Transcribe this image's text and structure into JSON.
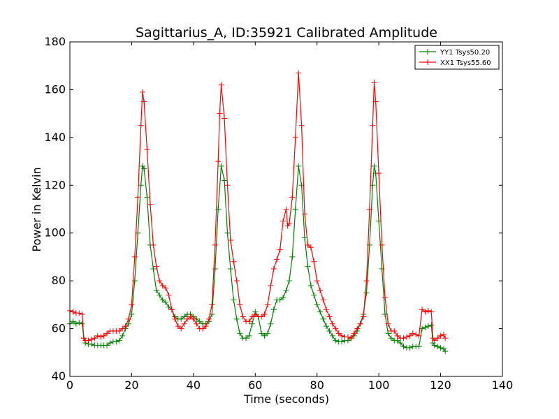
{
  "chart_data": {
    "type": "line",
    "title": "Sagittarius_A, ID:35921 Calibrated Amplitude",
    "xlabel": "Time (seconds)",
    "ylabel": "Power in Kelvin",
    "xlim": [
      0,
      140
    ],
    "ylim": [
      40,
      180
    ],
    "xticks": [
      0,
      20,
      40,
      60,
      80,
      100,
      120,
      140
    ],
    "yticks": [
      40,
      60,
      80,
      100,
      120,
      140,
      160,
      180
    ],
    "grid": false,
    "legend_position": "top-right",
    "marker": "+",
    "series": [
      {
        "name": "YY1 Tsys50.20",
        "color": "#008000",
        "points": [
          [
            0,
            62
          ],
          [
            1,
            63
          ],
          [
            2,
            62
          ],
          [
            3,
            62.5
          ],
          [
            4,
            62
          ],
          [
            4.5,
            56
          ],
          [
            5,
            54
          ],
          [
            6,
            53.5
          ],
          [
            7,
            53.5
          ],
          [
            8,
            53
          ],
          [
            9,
            53
          ],
          [
            10,
            53
          ],
          [
            11,
            53
          ],
          [
            12,
            53
          ],
          [
            13,
            54
          ],
          [
            14,
            54.5
          ],
          [
            15,
            54.5
          ],
          [
            16,
            55
          ],
          [
            17,
            57
          ],
          [
            18,
            60
          ],
          [
            19,
            62
          ],
          [
            20,
            66
          ],
          [
            21,
            80
          ],
          [
            22,
            100
          ],
          [
            23,
            120
          ],
          [
            23.5,
            128
          ],
          [
            24,
            127
          ],
          [
            25,
            115
          ],
          [
            26,
            95
          ],
          [
            27,
            85
          ],
          [
            28,
            76
          ],
          [
            29,
            74
          ],
          [
            30,
            72
          ],
          [
            31,
            71
          ],
          [
            32,
            69
          ],
          [
            33,
            68
          ],
          [
            34,
            65
          ],
          [
            35,
            64
          ],
          [
            36,
            64
          ],
          [
            37,
            65
          ],
          [
            38,
            66
          ],
          [
            39,
            66
          ],
          [
            40,
            65
          ],
          [
            41,
            64
          ],
          [
            42,
            63
          ],
          [
            43,
            62
          ],
          [
            44,
            62
          ],
          [
            45,
            63
          ],
          [
            46,
            66
          ],
          [
            47,
            85
          ],
          [
            48,
            110
          ],
          [
            49,
            128
          ],
          [
            50,
            122
          ],
          [
            51,
            100
          ],
          [
            52,
            85
          ],
          [
            53,
            72
          ],
          [
            54,
            64
          ],
          [
            55,
            58
          ],
          [
            56,
            56
          ],
          [
            57,
            56
          ],
          [
            58,
            57
          ],
          [
            59,
            62
          ],
          [
            60,
            67
          ],
          [
            61,
            65
          ],
          [
            62,
            58
          ],
          [
            63,
            57
          ],
          [
            64,
            58
          ],
          [
            65,
            62
          ],
          [
            66,
            68
          ],
          [
            67,
            72
          ],
          [
            68,
            72
          ],
          [
            69,
            73
          ],
          [
            70,
            76
          ],
          [
            71,
            80
          ],
          [
            72,
            90
          ],
          [
            73,
            110
          ],
          [
            74,
            128
          ],
          [
            75,
            120
          ],
          [
            76,
            98
          ],
          [
            77,
            86
          ],
          [
            78,
            78
          ],
          [
            79,
            74
          ],
          [
            80,
            70
          ],
          [
            81,
            67
          ],
          [
            82,
            64
          ],
          [
            83,
            61
          ],
          [
            84,
            59
          ],
          [
            85,
            57
          ],
          [
            86,
            55
          ],
          [
            87,
            54.5
          ],
          [
            88,
            54.5
          ],
          [
            89,
            55
          ],
          [
            90,
            55
          ],
          [
            91,
            56
          ],
          [
            92,
            57
          ],
          [
            93,
            59
          ],
          [
            94,
            62
          ],
          [
            95,
            66
          ],
          [
            96,
            75
          ],
          [
            97,
            95
          ],
          [
            98,
            120
          ],
          [
            98.5,
            128
          ],
          [
            99,
            125
          ],
          [
            100,
            105
          ],
          [
            101,
            85
          ],
          [
            102,
            66
          ],
          [
            103,
            58
          ],
          [
            104,
            56
          ],
          [
            105,
            55
          ],
          [
            106,
            55
          ],
          [
            107,
            54
          ],
          [
            108,
            52.5
          ],
          [
            109,
            52
          ],
          [
            110,
            52
          ],
          [
            111,
            52.5
          ],
          [
            112,
            52.5
          ],
          [
            113,
            52.5
          ],
          [
            114,
            60
          ],
          [
            115,
            60.5
          ],
          [
            116,
            61
          ],
          [
            117,
            61.5
          ],
          [
            117.5,
            54
          ],
          [
            118,
            53
          ],
          [
            119,
            52.5
          ],
          [
            120,
            52
          ],
          [
            121,
            51.5
          ],
          [
            121.5,
            50.5
          ]
        ]
      },
      {
        "name": "XX1 Tsys55.60",
        "color": "#ff0000",
        "points": [
          [
            0,
            67.5
          ],
          [
            1,
            67
          ],
          [
            2,
            66.5
          ],
          [
            3,
            66.5
          ],
          [
            4,
            66
          ],
          [
            4.5,
            56
          ],
          [
            5,
            55
          ],
          [
            6,
            55
          ],
          [
            7,
            55.5
          ],
          [
            8,
            56
          ],
          [
            9,
            57
          ],
          [
            10,
            56.5
          ],
          [
            11,
            57
          ],
          [
            12,
            58
          ],
          [
            13,
            59
          ],
          [
            14,
            59
          ],
          [
            15,
            59
          ],
          [
            16,
            59
          ],
          [
            17,
            60
          ],
          [
            18,
            61
          ],
          [
            19,
            64
          ],
          [
            20,
            70
          ],
          [
            21,
            90
          ],
          [
            22,
            115
          ],
          [
            23,
            145
          ],
          [
            23.5,
            159
          ],
          [
            24,
            155
          ],
          [
            25,
            135
          ],
          [
            26,
            112
          ],
          [
            27,
            95
          ],
          [
            28,
            86
          ],
          [
            29,
            80
          ],
          [
            30,
            78
          ],
          [
            31,
            77
          ],
          [
            32,
            74
          ],
          [
            33,
            68
          ],
          [
            34,
            64
          ],
          [
            35,
            61
          ],
          [
            36,
            60
          ],
          [
            37,
            62
          ],
          [
            38,
            64
          ],
          [
            39,
            65
          ],
          [
            40,
            64
          ],
          [
            41,
            62
          ],
          [
            42,
            60
          ],
          [
            43,
            60
          ],
          [
            44,
            61
          ],
          [
            45,
            64
          ],
          [
            46,
            70
          ],
          [
            47,
            95
          ],
          [
            48,
            130
          ],
          [
            48.5,
            150
          ],
          [
            49,
            162
          ],
          [
            50,
            148
          ],
          [
            51,
            120
          ],
          [
            52,
            97
          ],
          [
            53,
            88
          ],
          [
            54,
            80
          ],
          [
            55,
            70
          ],
          [
            56,
            65
          ],
          [
            57,
            63
          ],
          [
            58,
            63
          ],
          [
            59,
            65
          ],
          [
            60,
            66
          ],
          [
            61,
            65
          ],
          [
            62,
            65
          ],
          [
            63,
            66
          ],
          [
            64,
            70
          ],
          [
            65,
            78
          ],
          [
            66,
            85
          ],
          [
            67,
            89
          ],
          [
            68,
            93
          ],
          [
            69,
            105
          ],
          [
            70,
            110
          ],
          [
            70.5,
            103
          ],
          [
            71,
            104
          ],
          [
            72,
            115
          ],
          [
            73,
            140
          ],
          [
            74,
            167
          ],
          [
            75,
            145
          ],
          [
            76,
            108
          ],
          [
            77,
            95
          ],
          [
            78,
            94
          ],
          [
            79,
            88
          ],
          [
            80,
            80
          ],
          [
            81,
            76
          ],
          [
            82,
            72
          ],
          [
            83,
            68
          ],
          [
            84,
            65
          ],
          [
            85,
            62
          ],
          [
            86,
            60
          ],
          [
            87,
            58
          ],
          [
            88,
            57
          ],
          [
            89,
            56.5
          ],
          [
            90,
            56.5
          ],
          [
            91,
            56
          ],
          [
            92,
            58
          ],
          [
            93,
            60
          ],
          [
            94,
            62
          ],
          [
            95,
            65
          ],
          [
            96,
            80
          ],
          [
            97,
            110
          ],
          [
            98,
            145
          ],
          [
            98.5,
            163
          ],
          [
            99,
            155
          ],
          [
            100,
            125
          ],
          [
            101,
            95
          ],
          [
            102,
            73
          ],
          [
            103,
            62
          ],
          [
            104,
            59
          ],
          [
            105,
            59
          ],
          [
            106,
            57
          ],
          [
            107,
            56
          ],
          [
            108,
            56
          ],
          [
            109,
            56.5
          ],
          [
            110,
            57
          ],
          [
            111,
            58
          ],
          [
            112,
            57.5
          ],
          [
            113,
            57
          ],
          [
            114,
            68
          ],
          [
            115,
            67
          ],
          [
            116,
            67.5
          ],
          [
            117,
            67
          ],
          [
            117.5,
            56
          ],
          [
            118,
            55
          ],
          [
            119,
            56
          ],
          [
            120,
            57
          ],
          [
            121,
            57.5
          ],
          [
            121.5,
            56
          ]
        ]
      }
    ]
  }
}
